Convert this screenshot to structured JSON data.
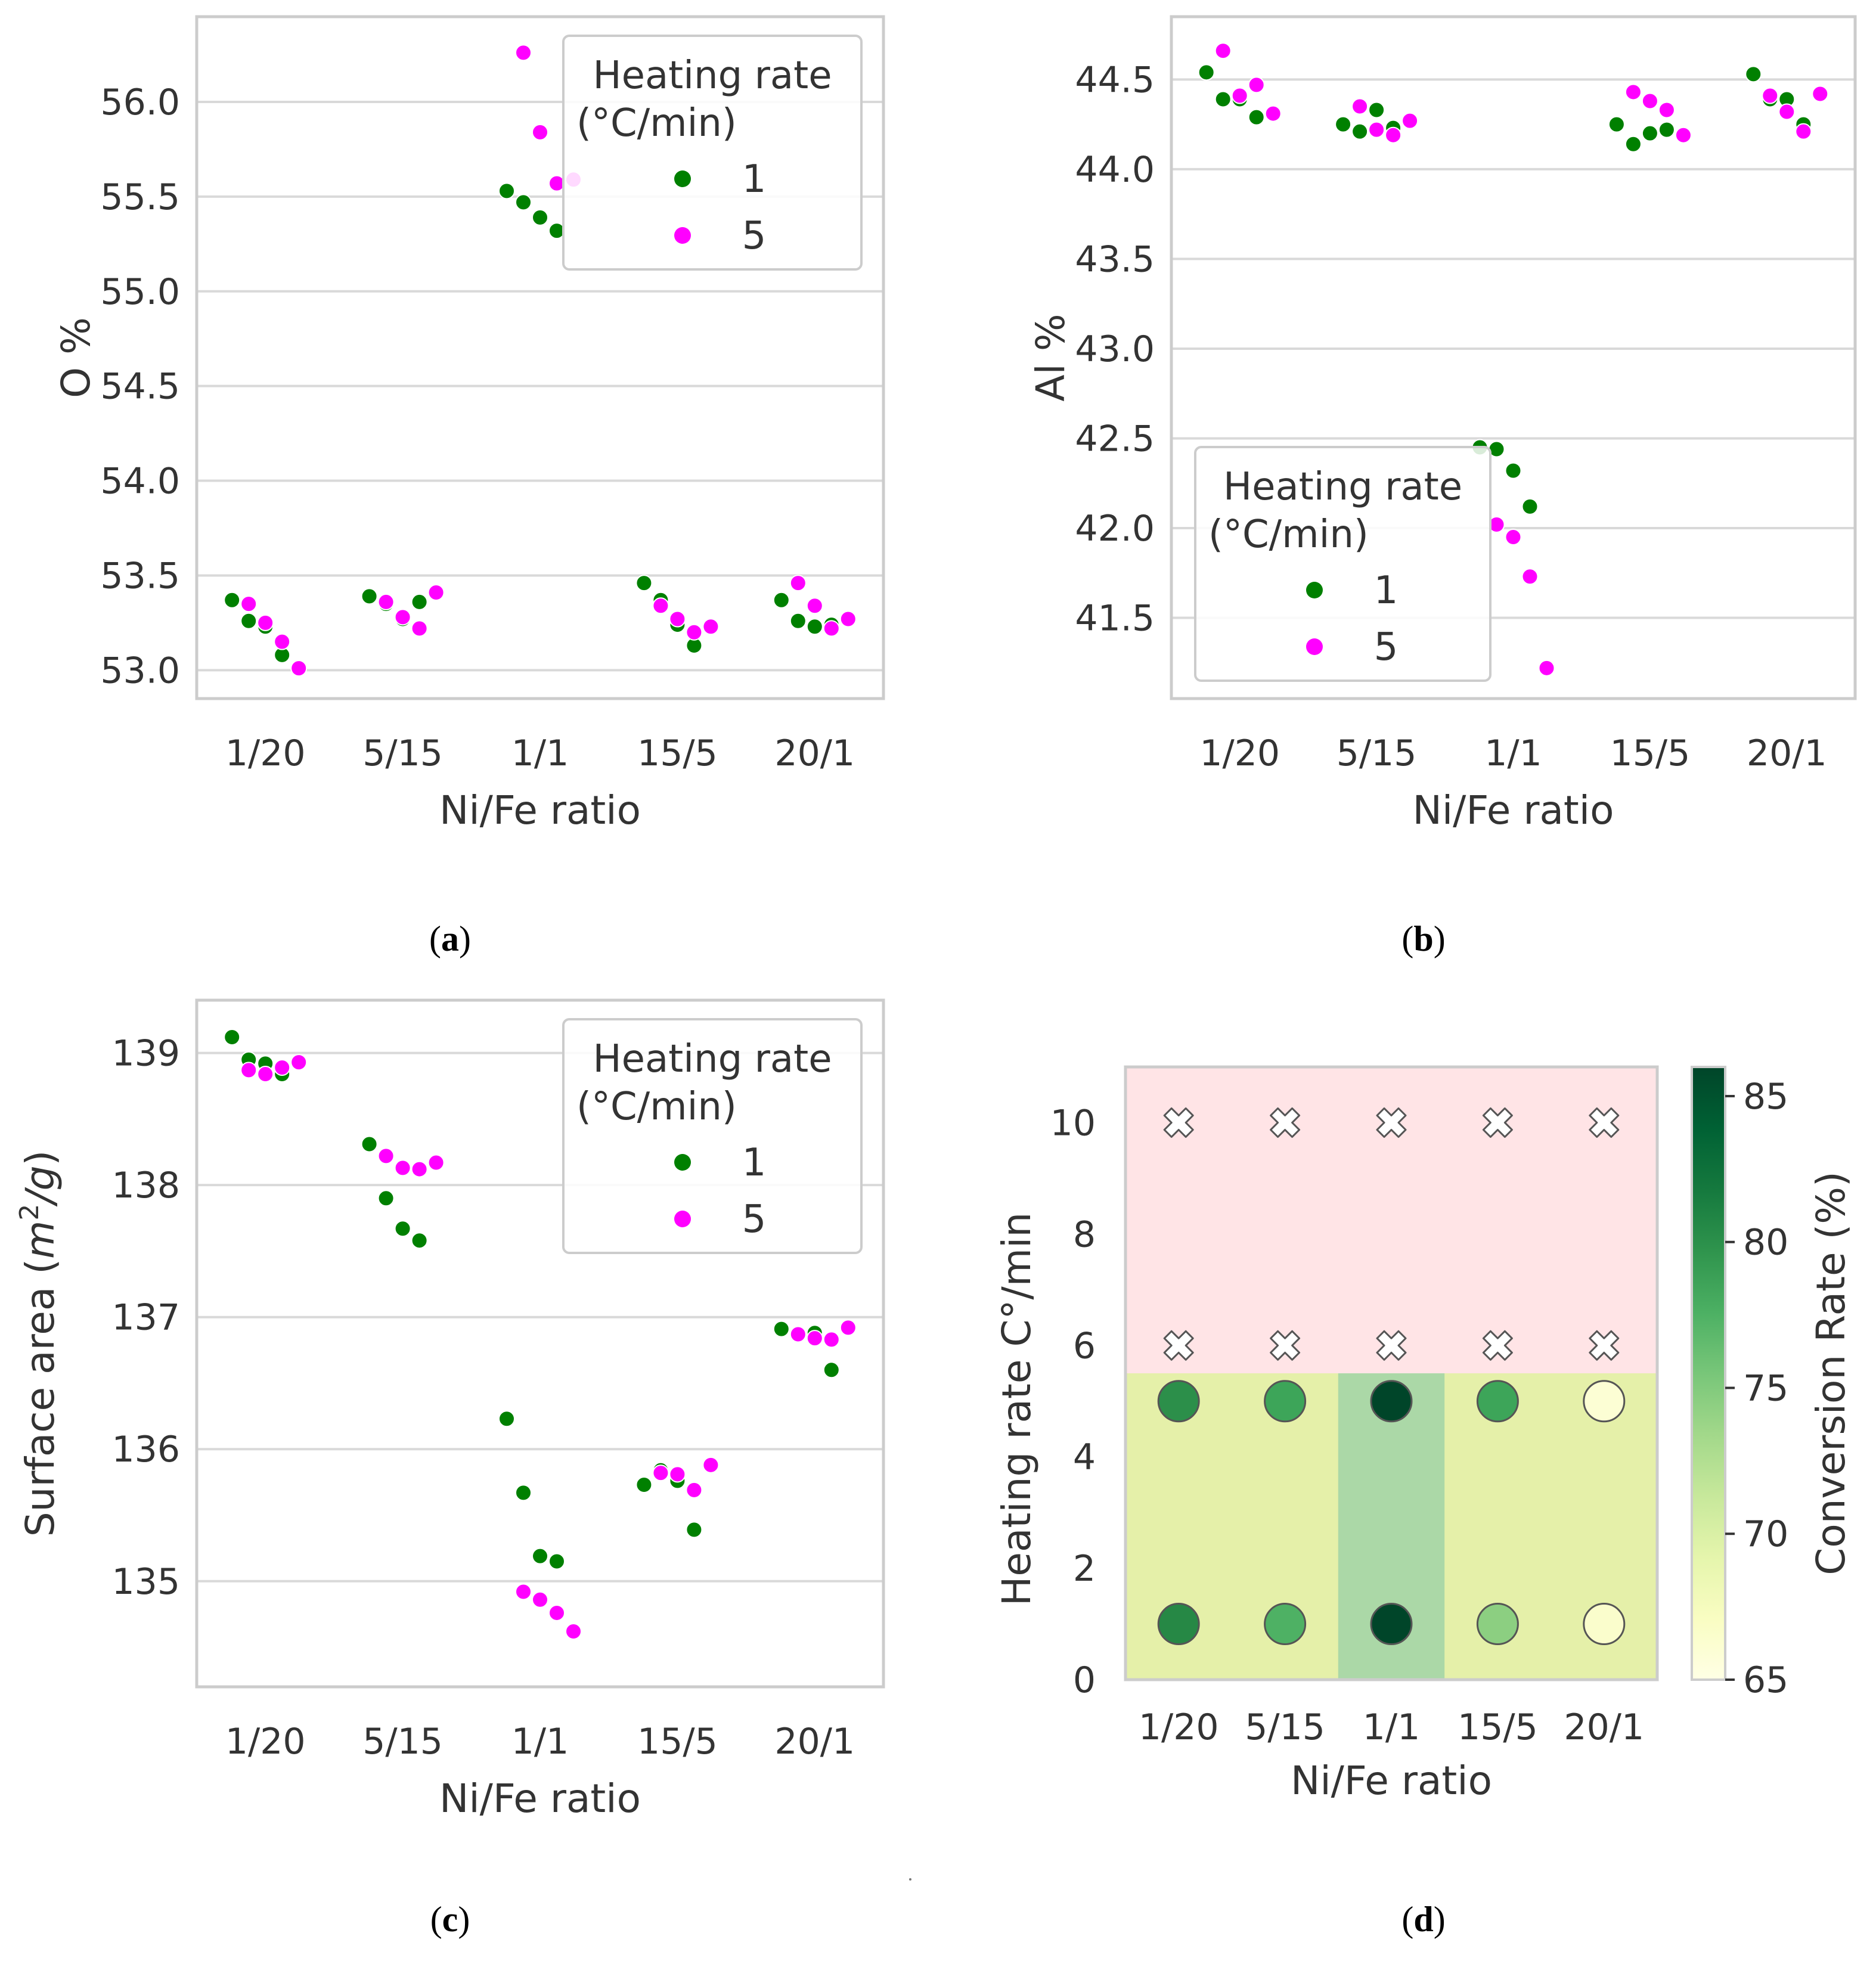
{
  "chart_data": [
    {
      "id": "a",
      "type": "scatter",
      "style": "swarm",
      "panel_label": "(a)",
      "panel_letter": "a",
      "xlabel": "Ni/Fe ratio",
      "ylabel": "O %",
      "categories": [
        "1/20",
        "5/15",
        "1/1",
        "15/5",
        "20/1"
      ],
      "ylim": [
        52.85,
        56.45
      ],
      "yticks": [
        "53.0",
        "53.5",
        "54.0",
        "54.5",
        "55.0",
        "55.5",
        "56.0"
      ],
      "grid": true,
      "legend": {
        "title": [
          "Heating rate",
          "(°C/min)"
        ],
        "placement": "top-right",
        "entries": [
          "1",
          "5"
        ]
      },
      "series": [
        {
          "name": "1",
          "color": "#008000",
          "points": [
            {
              "x": "1/20",
              "y": [
                53.37,
                53.26,
                53.23,
                53.08
              ]
            },
            {
              "x": "5/15",
              "y": [
                53.39,
                53.35,
                53.27,
                53.36
              ]
            },
            {
              "x": "1/1",
              "y": [
                55.53,
                55.47,
                55.39,
                55.32
              ]
            },
            {
              "x": "15/5",
              "y": [
                53.46,
                53.37,
                53.24,
                53.13
              ]
            },
            {
              "x": "20/1",
              "y": [
                53.37,
                53.26,
                53.23,
                53.24
              ]
            }
          ]
        },
        {
          "name": "5",
          "color": "#ff00ff",
          "points": [
            {
              "x": "1/20",
              "y": [
                53.35,
                53.25,
                53.15,
                53.01
              ]
            },
            {
              "x": "5/15",
              "y": [
                53.36,
                53.28,
                53.22,
                53.41
              ]
            },
            {
              "x": "1/1",
              "y": [
                56.26,
                55.84,
                55.57,
                55.59
              ]
            },
            {
              "x": "15/5",
              "y": [
                53.34,
                53.27,
                53.2,
                53.23
              ]
            },
            {
              "x": "20/1",
              "y": [
                53.46,
                53.34,
                53.22,
                53.27
              ]
            }
          ]
        }
      ]
    },
    {
      "id": "b",
      "type": "scatter",
      "style": "swarm",
      "panel_label": "(b)",
      "panel_letter": "b",
      "xlabel": "Ni/Fe ratio",
      "ylabel": "Al %",
      "categories": [
        "1/20",
        "5/15",
        "1/1",
        "15/5",
        "20/1"
      ],
      "ylim": [
        41.05,
        44.85
      ],
      "yticks": [
        "41.5",
        "42.0",
        "42.5",
        "43.0",
        "43.5",
        "44.0",
        "44.5"
      ],
      "grid": true,
      "legend": {
        "title": [
          "Heating rate",
          "(°C/min)"
        ],
        "placement": "lower-center",
        "entries": [
          "1",
          "5"
        ]
      },
      "series": [
        {
          "name": "1",
          "color": "#008000",
          "points": [
            {
              "x": "1/20",
              "y": [
                44.54,
                44.39,
                44.39,
                44.29
              ]
            },
            {
              "x": "5/15",
              "y": [
                44.25,
                44.21,
                44.33,
                44.23
              ]
            },
            {
              "x": "1/1",
              "y": [
                42.45,
                42.44,
                42.32,
                42.12
              ]
            },
            {
              "x": "15/5",
              "y": [
                44.25,
                44.14,
                44.2,
                44.22
              ]
            },
            {
              "x": "20/1",
              "y": [
                44.53,
                44.39,
                44.39,
                44.25
              ]
            }
          ]
        },
        {
          "name": "5",
          "color": "#ff00ff",
          "points": [
            {
              "x": "1/20",
              "y": [
                44.66,
                44.41,
                44.47,
                44.31
              ]
            },
            {
              "x": "5/15",
              "y": [
                44.35,
                44.22,
                44.19,
                44.27
              ]
            },
            {
              "x": "1/1",
              "y": [
                42.02,
                41.95,
                41.73,
                41.22
              ]
            },
            {
              "x": "15/5",
              "y": [
                44.43,
                44.38,
                44.33,
                44.19
              ]
            },
            {
              "x": "20/1",
              "y": [
                44.41,
                44.32,
                44.21,
                44.42
              ]
            }
          ]
        }
      ]
    },
    {
      "id": "c",
      "type": "scatter",
      "style": "swarm",
      "panel_label": "(c)",
      "panel_letter": "c",
      "xlabel": "Ni/Fe ratio",
      "ylabel": "Surface area (m²/g)",
      "ylabel_parts": [
        "Surface area (",
        "m",
        "2",
        "/",
        "g",
        ")"
      ],
      "categories": [
        "1/20",
        "5/15",
        "1/1",
        "15/5",
        "20/1"
      ],
      "ylim": [
        134.2,
        139.4
      ],
      "yticks": [
        "135",
        "136",
        "137",
        "138",
        "139"
      ],
      "grid": true,
      "legend": {
        "title": [
          "Heating rate",
          "(°C/min)"
        ],
        "placement": "top-right",
        "entries": [
          "1",
          "5"
        ]
      },
      "series": [
        {
          "name": "1",
          "color": "#008000",
          "points": [
            {
              "x": "1/20",
              "y": [
                139.12,
                138.95,
                138.92,
                138.84
              ]
            },
            {
              "x": "5/15",
              "y": [
                138.31,
                137.9,
                137.67,
                137.58
              ]
            },
            {
              "x": "1/1",
              "y": [
                136.23,
                135.67,
                135.19,
                135.15
              ]
            },
            {
              "x": "15/5",
              "y": [
                135.73,
                135.84,
                135.76,
                135.39
              ]
            },
            {
              "x": "20/1",
              "y": [
                136.91,
                136.87,
                136.88,
                136.6
              ]
            }
          ]
        },
        {
          "name": "5",
          "color": "#ff00ff",
          "points": [
            {
              "x": "1/20",
              "y": [
                138.87,
                138.84,
                138.89,
                138.93
              ]
            },
            {
              "x": "5/15",
              "y": [
                138.22,
                138.13,
                138.12,
                138.17
              ]
            },
            {
              "x": "1/1",
              "y": [
                134.92,
                134.86,
                134.76,
                134.62
              ]
            },
            {
              "x": "15/5",
              "y": [
                135.82,
                135.81,
                135.69,
                135.88
              ]
            },
            {
              "x": "20/1",
              "y": [
                136.87,
                136.84,
                136.83,
                136.92
              ]
            }
          ]
        }
      ]
    },
    {
      "id": "d",
      "type": "heatmap",
      "panel_label": "(d)",
      "panel_letter": "d",
      "xlabel": "Ni/Fe ratio",
      "ylabel": "Heating rate C°/min",
      "categories": [
        "1/20",
        "5/15",
        "1/1",
        "15/5",
        "20/1"
      ],
      "ylim": [
        0,
        11
      ],
      "yticks": [
        "0",
        "2",
        "4",
        "6",
        "8",
        "10"
      ],
      "grid": false,
      "infeasible_threshold": 5.5,
      "infeasible_color": "#ffe4e6",
      "feasible_color": "#e5f0a9",
      "highlight_category": "1/1",
      "highlight_color": "#abd8a7",
      "colorbar": {
        "label": "Conversion Rate (%)",
        "min": 65,
        "max": 86,
        "ticks": [
          "65",
          "70",
          "75",
          "80",
          "85"
        ],
        "colormap": "YlGn"
      },
      "cells": [
        {
          "x": "1/20",
          "y": 1,
          "value": 80.5
        },
        {
          "x": "5/15",
          "y": 1,
          "value": 77.5
        },
        {
          "x": "1/1",
          "y": 1,
          "value": 86
        },
        {
          "x": "15/5",
          "y": 1,
          "value": 74.5
        },
        {
          "x": "20/1",
          "y": 1,
          "value": 66.5
        },
        {
          "x": "1/20",
          "y": 5,
          "value": 80
        },
        {
          "x": "5/15",
          "y": 5,
          "value": 78.5
        },
        {
          "x": "1/1",
          "y": 5,
          "value": 86
        },
        {
          "x": "15/5",
          "y": 5,
          "value": 78.5
        },
        {
          "x": "20/1",
          "y": 5,
          "value": 66
        }
      ],
      "failed": [
        {
          "x": "1/20",
          "y": 6
        },
        {
          "x": "5/15",
          "y": 6
        },
        {
          "x": "1/1",
          "y": 6
        },
        {
          "x": "15/5",
          "y": 6
        },
        {
          "x": "20/1",
          "y": 6
        },
        {
          "x": "1/20",
          "y": 10
        },
        {
          "x": "5/15",
          "y": 10
        },
        {
          "x": "1/1",
          "y": 10
        },
        {
          "x": "15/5",
          "y": 10
        },
        {
          "x": "20/1",
          "y": 10
        }
      ]
    }
  ]
}
